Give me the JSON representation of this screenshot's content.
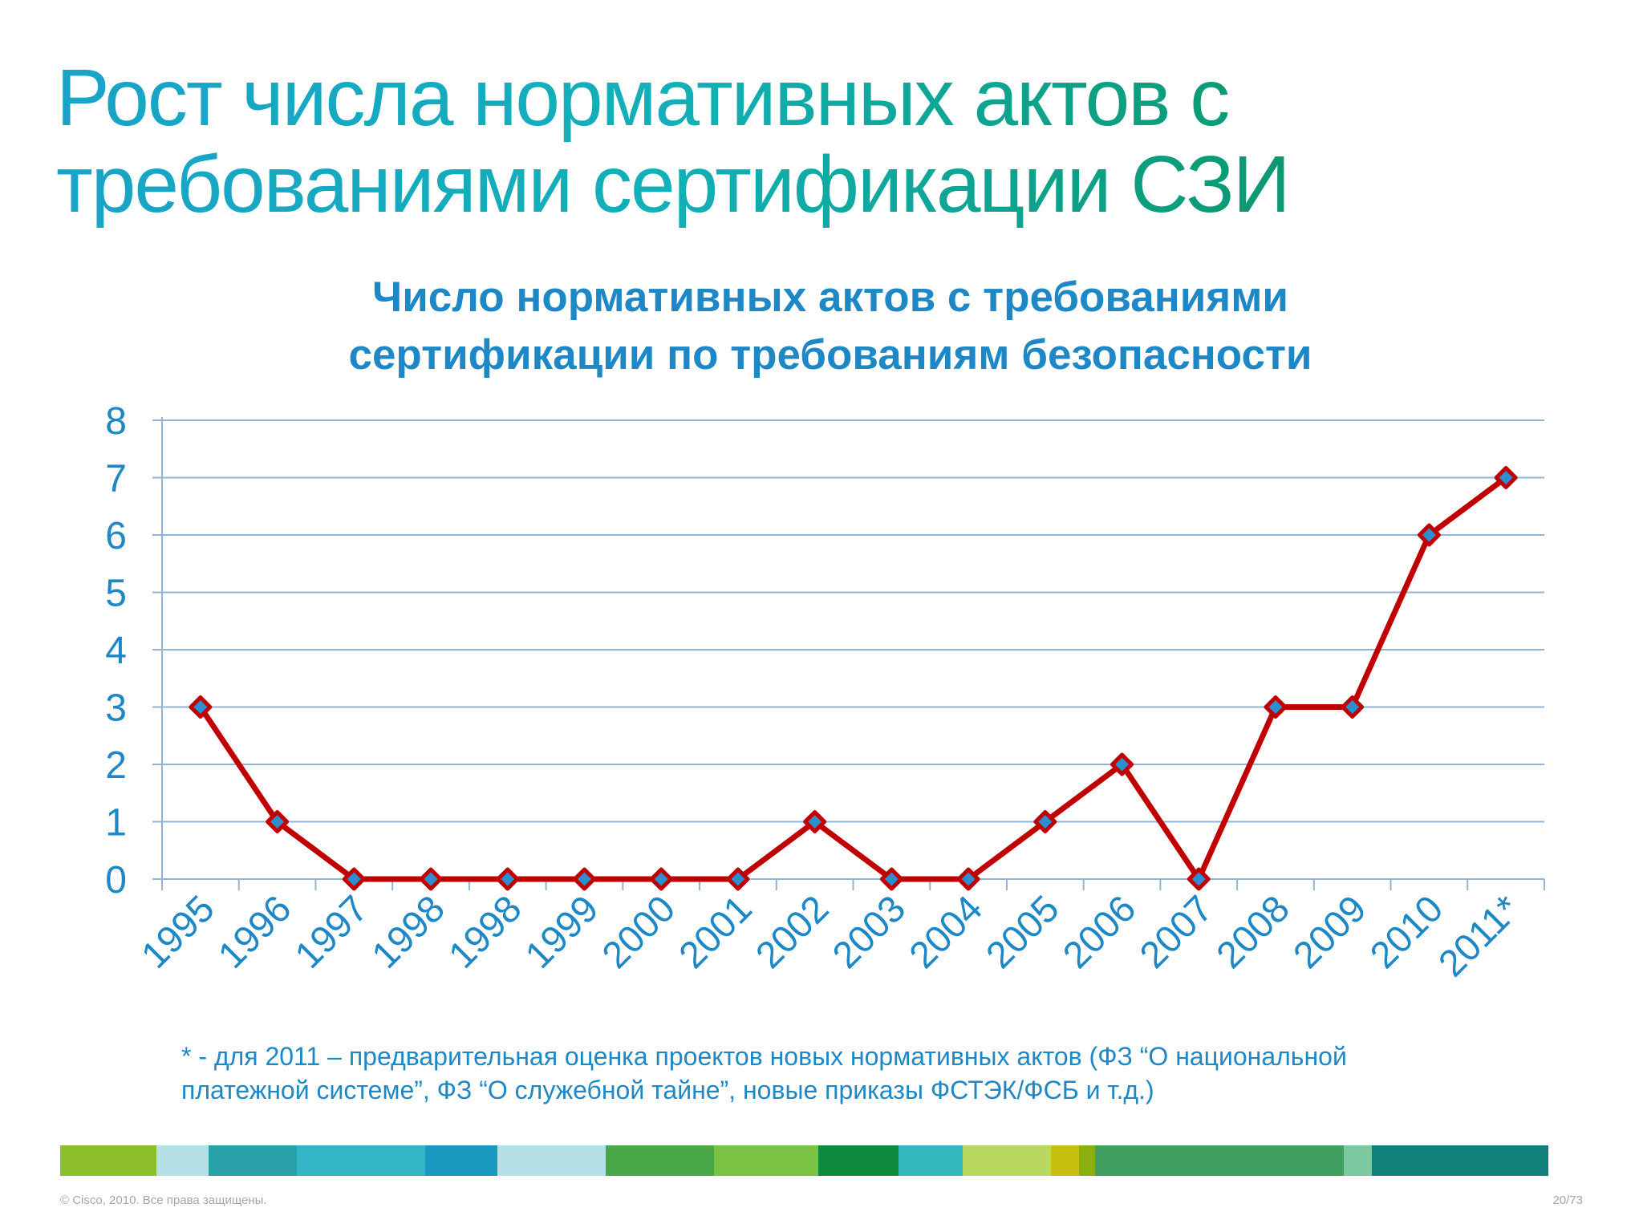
{
  "slide": {
    "title_line1": "Рост числа нормативных актов с",
    "title_line2": "требованиями сертификации СЗИ",
    "footnote_line1": "* - для 2011 – предварительная оценка проектов новых нормативных актов (ФЗ “О национальной",
    "footnote_line2": "платежной системе”, ФЗ “О служебной тайне”, новые приказы ФСТЭК/ФСБ и т.д.)",
    "copyright": "© Cisco, 2010. Все права защищены.",
    "page_number": "20/73",
    "footer_bar_colors": [
      "#8dbf2a",
      "#b5e0e8",
      "#27a0a8",
      "#33b5c8",
      "#1998c0",
      "#b5e0e8",
      "#4aa848",
      "#7ac242",
      "#0d8a3e",
      "#34b8c0",
      "#b8d860",
      "#c8c010",
      "#8ab010",
      "#40a060",
      "#7cc8a0",
      "#10807a"
    ]
  },
  "chart_data": {
    "type": "line",
    "title_line1": "Число нормативных актов с требованиями",
    "title_line2": "сертификации по требованиям безопасности",
    "xlabel": "",
    "ylabel": "",
    "ylim": [
      0,
      8
    ],
    "yticks": [
      "0",
      "1",
      "2",
      "3",
      "4",
      "5",
      "6",
      "7",
      "8"
    ],
    "categories": [
      "1995",
      "1996",
      "1997",
      "1998",
      "1998",
      "1999",
      "2000",
      "2001",
      "2002",
      "2003",
      "2004",
      "2005",
      "2006",
      "2007",
      "2008",
      "2009",
      "2010",
      "2011*"
    ],
    "values": [
      3,
      1,
      0,
      0,
      0,
      0,
      0,
      0,
      1,
      0,
      0,
      1,
      2,
      0,
      3,
      3,
      6,
      7
    ],
    "grid": true,
    "legend": "none",
    "colors": {
      "line": "#c00000",
      "marker_fill": "#2e8fd0",
      "grid": "#8fb4d8",
      "axis_text": "#1e88c7",
      "title_text": "#1e88c7"
    }
  }
}
